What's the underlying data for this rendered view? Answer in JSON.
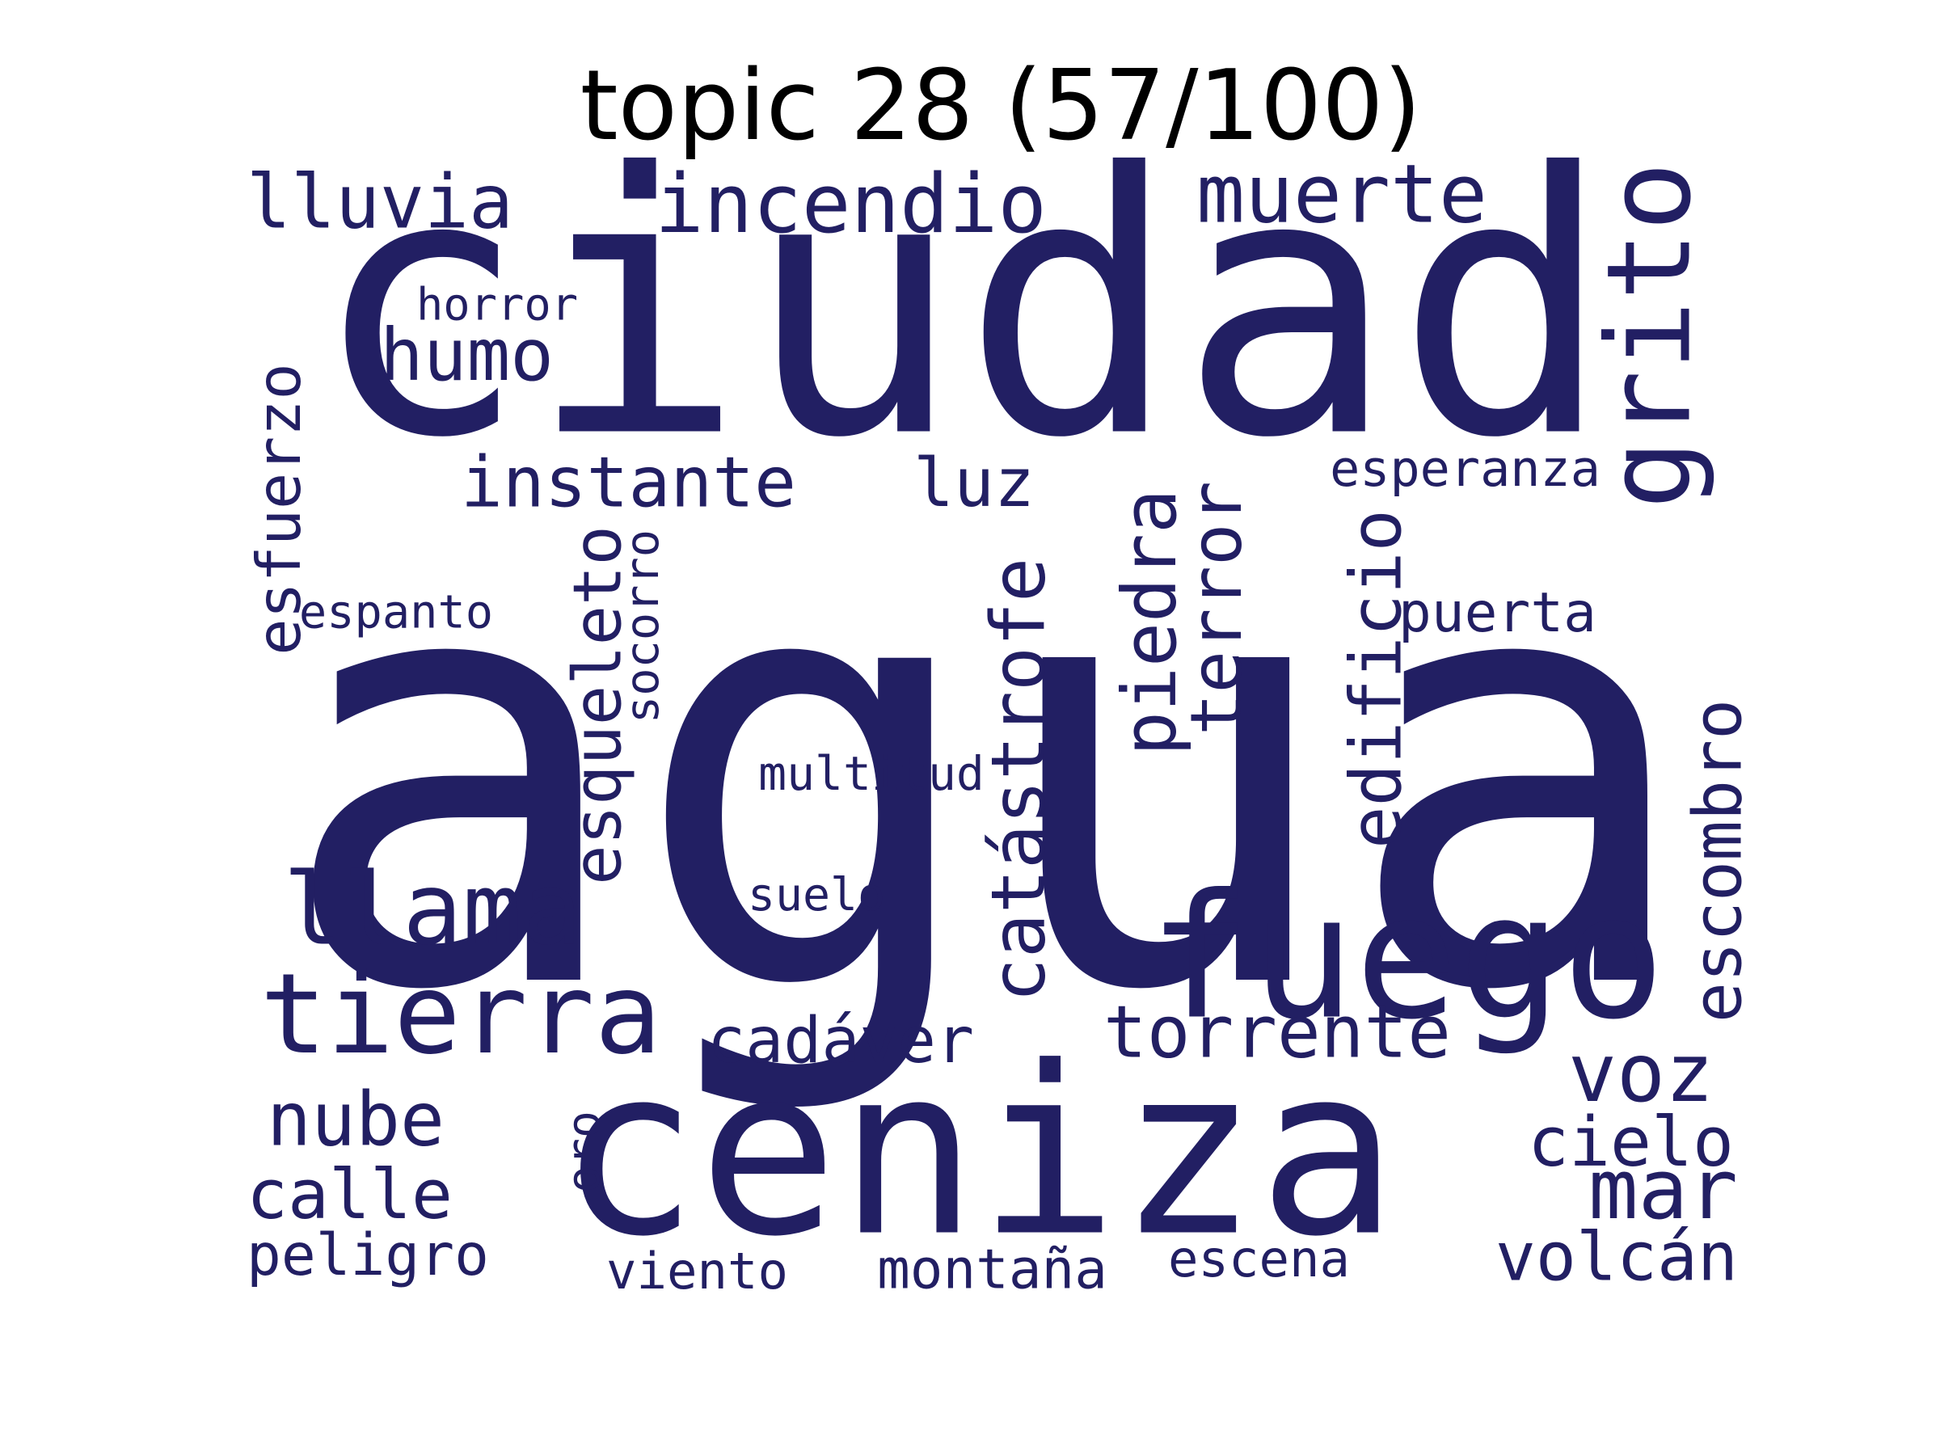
{
  "title": "topic 28 (57/100)",
  "word_color": "#221f63",
  "words": [
    {
      "text": "agua",
      "weight": 1.0
    },
    {
      "text": "ciudad",
      "weight": 0.55
    },
    {
      "text": "ceniza",
      "weight": 0.52
    },
    {
      "text": "fuego",
      "weight": 0.36
    },
    {
      "text": "tierra",
      "weight": 0.24
    },
    {
      "text": "grito",
      "weight": 0.22
    },
    {
      "text": "llama",
      "weight": 0.22
    },
    {
      "text": "incendio",
      "weight": 0.18
    },
    {
      "text": "muerte",
      "weight": 0.17
    },
    {
      "text": "voz",
      "weight": 0.17
    },
    {
      "text": "mar",
      "weight": 0.16
    },
    {
      "text": "catástrofe",
      "weight": 0.16
    },
    {
      "text": "piedra",
      "weight": 0.16
    },
    {
      "text": "terror",
      "weight": 0.16
    },
    {
      "text": "edificio",
      "weight": 0.15
    },
    {
      "text": "esqueleto",
      "weight": 0.15
    },
    {
      "text": "lluvia",
      "weight": 0.15
    },
    {
      "text": "instante",
      "weight": 0.15
    },
    {
      "text": "torrente",
      "weight": 0.15
    },
    {
      "text": "cadáver",
      "weight": 0.14
    },
    {
      "text": "volcán",
      "weight": 0.14
    },
    {
      "text": "cielo",
      "weight": 0.14
    },
    {
      "text": "nube",
      "weight": 0.14
    },
    {
      "text": "calle",
      "weight": 0.14
    },
    {
      "text": "esfuerzo",
      "weight": 0.13
    },
    {
      "text": "humo",
      "weight": 0.13
    },
    {
      "text": "luz",
      "weight": 0.13
    },
    {
      "text": "escombro",
      "weight": 0.13
    },
    {
      "text": "peligro",
      "weight": 0.12
    },
    {
      "text": "montaña",
      "weight": 0.11
    },
    {
      "text": "viento",
      "weight": 0.11
    },
    {
      "text": "escena",
      "weight": 0.11
    },
    {
      "text": "puerta",
      "weight": 0.11
    },
    {
      "text": "esperanza",
      "weight": 0.1
    },
    {
      "text": "horror",
      "weight": 0.1
    },
    {
      "text": "espanto",
      "weight": 0.09
    },
    {
      "text": "multitud",
      "weight": 0.09
    },
    {
      "text": "suelo",
      "weight": 0.09
    },
    {
      "text": "socorro",
      "weight": 0.09
    },
    {
      "text": "oro",
      "weight": 0.09
    }
  ]
}
